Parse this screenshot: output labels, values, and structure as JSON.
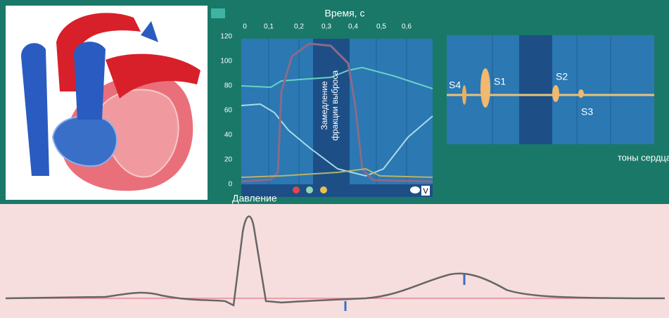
{
  "time_axis": {
    "title": "Время, с",
    "ticks": [
      "0",
      "0,1",
      "0,2",
      "0,3",
      "0,4",
      "0,5",
      "0,6"
    ]
  },
  "pressure_axis": {
    "ticks": [
      "120",
      "100",
      "80",
      "60",
      "40",
      "20",
      "0"
    ],
    "title": "Давление"
  },
  "annotation": {
    "lines": [
      "Замедление",
      "фракции выброса"
    ]
  },
  "corner_label": "V",
  "heart_sounds": {
    "labels": [
      "S4",
      "S1",
      "S2",
      "S3"
    ],
    "caption": "тоны сердца"
  }
}
